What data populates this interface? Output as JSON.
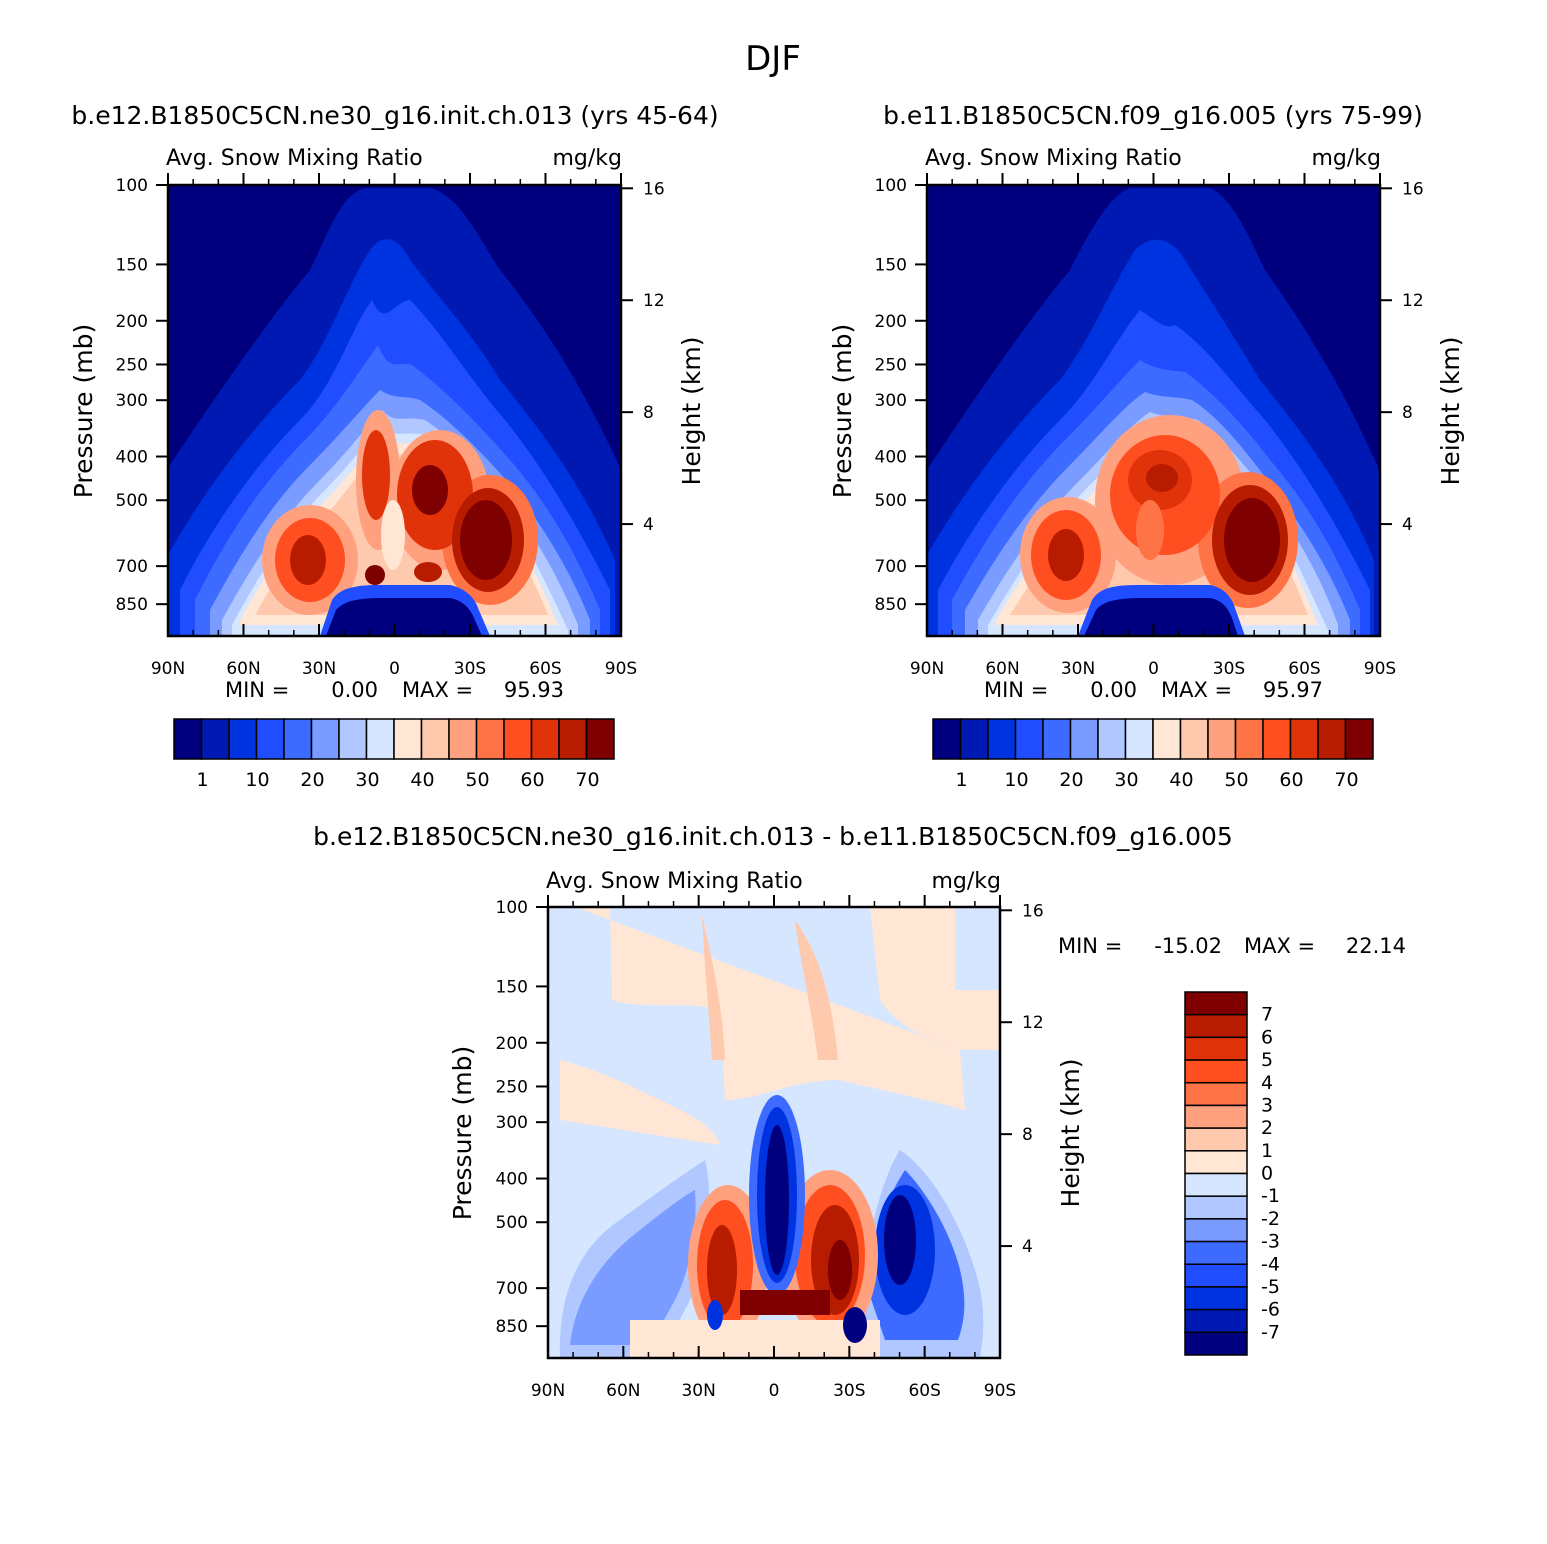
{
  "figure_title": "DJF",
  "palette_main": [
    "#00007f",
    "#0019b2",
    "#0033e0",
    "#1f4dff",
    "#3d6bff",
    "#7a9bff",
    "#b0c8ff",
    "#d6e6ff",
    "#ffe6d5",
    "#ffc9ad",
    "#ffa07f",
    "#ff7447",
    "#ff4e1f",
    "#e0330a",
    "#b81c00",
    "#7f0000"
  ],
  "palette_diff": [
    "#7f0000",
    "#b81c00",
    "#e0330a",
    "#ff4e1f",
    "#ff7447",
    "#ffa07f",
    "#ffc9ad",
    "#ffe6d5",
    "#d6e6ff",
    "#b0c8ff",
    "#7a9bff",
    "#3d6bff",
    "#1f4dff",
    "#0033e0",
    "#0019b2",
    "#00007f"
  ],
  "chart_data": [
    {
      "type": "heatmap",
      "title": "b.e12.B1850C5CN.ne30_g16.init.ch.013 (yrs 45-64)",
      "subtitle_left": "Avg. Snow Mixing Ratio",
      "subtitle_right": "mg/kg",
      "ylabel": "Pressure (mb)",
      "ylabel_right": "Height (km)",
      "x_ticks": [
        "90N",
        "60N",
        "30N",
        "0",
        "30S",
        "60S",
        "90S"
      ],
      "x_values": [
        90,
        60,
        30,
        0,
        -30,
        -60,
        -90
      ],
      "y_ticks": [
        "100",
        "150",
        "200",
        "250",
        "300",
        "400",
        "500",
        "700",
        "850"
      ],
      "y_values": [
        100,
        150,
        200,
        250,
        300,
        400,
        500,
        700,
        850
      ],
      "y_right_ticks": [
        "4",
        "8",
        "12",
        "16"
      ],
      "y_right_values": [
        4,
        8,
        12,
        16
      ],
      "ylim": [
        100,
        1000
      ],
      "y_scale": "log",
      "min_label": "MIN =",
      "min_value": "0.00",
      "max_label": "MAX =",
      "max_value": "95.93",
      "colorbar_labels": [
        "1",
        "10",
        "20",
        "30",
        "40",
        "50",
        "60",
        "70"
      ],
      "colorbar_levels": [
        1,
        10,
        20,
        30,
        40,
        50,
        60,
        70
      ],
      "features": [
        {
          "lat": 30,
          "p": 650,
          "value": 70
        },
        {
          "lat": 8,
          "p": 420,
          "value": 70
        },
        {
          "lat": -12,
          "p": 440,
          "value": 75
        },
        {
          "lat": -33,
          "p": 580,
          "value": 90
        },
        {
          "lat": 8,
          "p": 700,
          "value": 72
        },
        {
          "lat": -12,
          "p": 700,
          "value": 70
        }
      ]
    },
    {
      "type": "heatmap",
      "title": "b.e11.B1850C5CN.f09_g16.005 (yrs 75-99)",
      "subtitle_left": "Avg. Snow Mixing Ratio",
      "subtitle_right": "mg/kg",
      "ylabel": "Pressure (mb)",
      "ylabel_right": "Height (km)",
      "x_ticks": [
        "90N",
        "60N",
        "30N",
        "0",
        "30S",
        "60S",
        "90S"
      ],
      "x_values": [
        90,
        60,
        30,
        0,
        -30,
        -60,
        -90
      ],
      "y_ticks": [
        "100",
        "150",
        "200",
        "250",
        "300",
        "400",
        "500",
        "700",
        "850"
      ],
      "y_values": [
        100,
        150,
        200,
        250,
        300,
        400,
        500,
        700,
        850
      ],
      "y_right_ticks": [
        "4",
        "8",
        "12",
        "16"
      ],
      "y_right_values": [
        4,
        8,
        12,
        16
      ],
      "ylim": [
        100,
        1000
      ],
      "y_scale": "log",
      "min_label": "MIN =",
      "min_value": "0.00",
      "max_label": "MAX =",
      "max_value": "95.97",
      "colorbar_labels": [
        "1",
        "10",
        "20",
        "30",
        "40",
        "50",
        "60",
        "70"
      ],
      "colorbar_levels": [
        1,
        10,
        20,
        30,
        40,
        50,
        60,
        70
      ],
      "features": [
        {
          "lat": 32,
          "p": 620,
          "value": 70
        },
        {
          "lat": -10,
          "p": 430,
          "value": 75
        },
        {
          "lat": -35,
          "p": 570,
          "value": 92
        }
      ]
    },
    {
      "type": "heatmap",
      "title": "b.e12.B1850C5CN.ne30_g16.init.ch.013 - b.e11.B1850C5CN.f09_g16.005",
      "subtitle_left": "Avg. Snow Mixing Ratio",
      "subtitle_right": "mg/kg",
      "ylabel": "Pressure (mb)",
      "ylabel_right": "Height (km)",
      "x_ticks": [
        "90N",
        "60N",
        "30N",
        "0",
        "30S",
        "60S",
        "90S"
      ],
      "x_values": [
        90,
        60,
        30,
        0,
        -30,
        -60,
        -90
      ],
      "y_ticks": [
        "100",
        "150",
        "200",
        "250",
        "300",
        "400",
        "500",
        "700",
        "850"
      ],
      "y_values": [
        100,
        150,
        200,
        250,
        300,
        400,
        500,
        700,
        850
      ],
      "y_right_ticks": [
        "4",
        "8",
        "12",
        "16"
      ],
      "y_right_values": [
        4,
        8,
        12,
        16
      ],
      "ylim": [
        100,
        1000
      ],
      "y_scale": "log",
      "min_label": "MIN =",
      "min_value": "-15.02",
      "max_label": "MAX =",
      "max_value": "22.14",
      "colorbar_labels": [
        "7",
        "6",
        "5",
        "4",
        "3",
        "2",
        "1",
        "0",
        "-1",
        "-2",
        "-3",
        "-4",
        "-5",
        "-6",
        "-7"
      ],
      "colorbar_levels": [
        7,
        6,
        5,
        4,
        3,
        2,
        1,
        0,
        -1,
        -2,
        -3,
        -4,
        -5,
        -6,
        -7
      ],
      "features": [
        {
          "lat": 0,
          "p": 450,
          "value": -15
        },
        {
          "lat": 27,
          "p": 600,
          "value": 8
        },
        {
          "lat": -27,
          "p": 600,
          "value": 10
        },
        {
          "lat": -40,
          "p": 500,
          "value": -8
        },
        {
          "lat": 42,
          "p": 520,
          "value": -4
        }
      ]
    }
  ]
}
